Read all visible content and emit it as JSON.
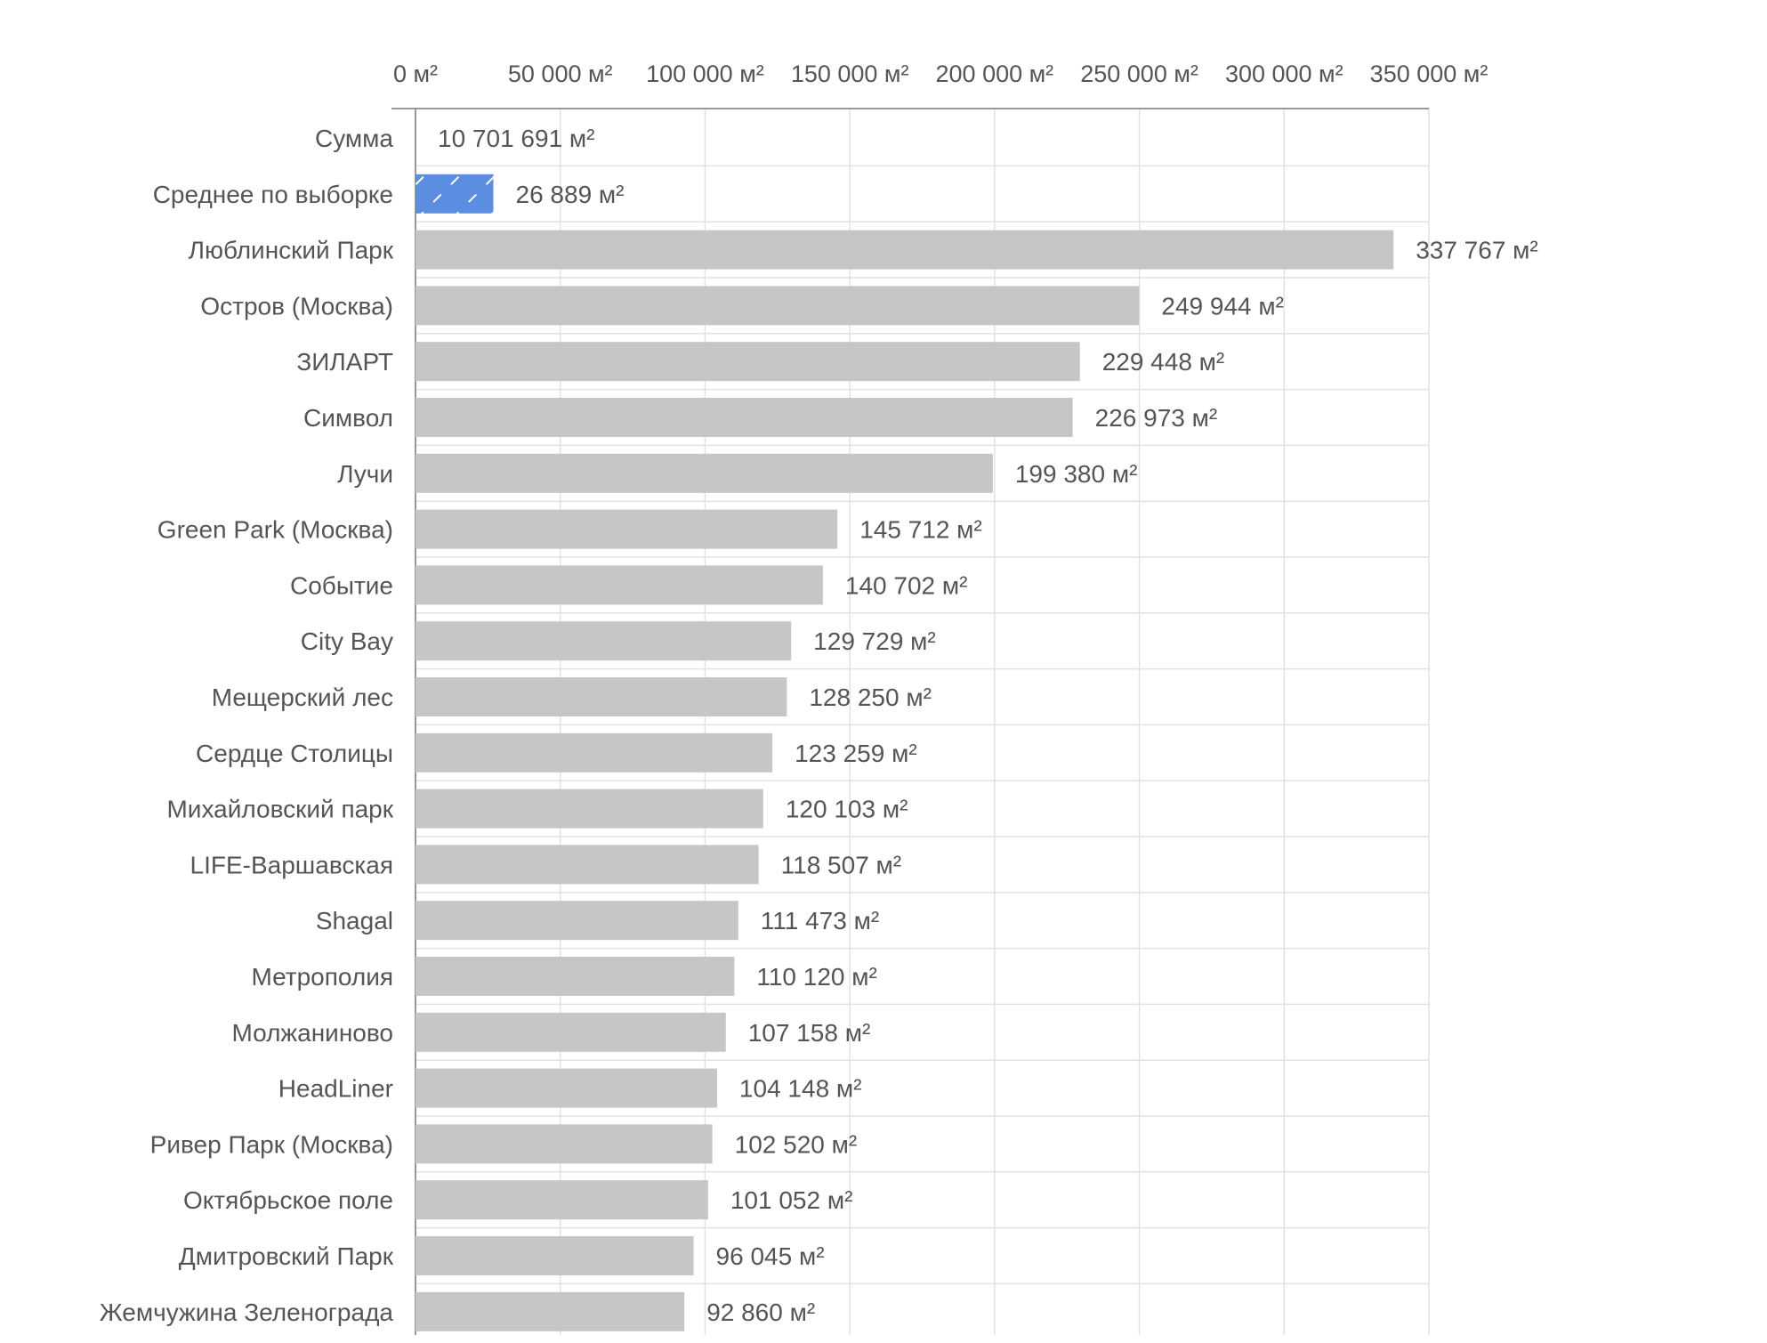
{
  "chart_data": {
    "type": "bar",
    "orientation": "horizontal",
    "unit": "м²",
    "xlim": [
      0,
      350000
    ],
    "x_ticks": [
      {
        "value": 0,
        "label": "0 м²"
      },
      {
        "value": 50000,
        "label": "50 000 м²"
      },
      {
        "value": 100000,
        "label": "100 000 м²"
      },
      {
        "value": 150000,
        "label": "150 000 м²"
      },
      {
        "value": 200000,
        "label": "200 000 м²"
      },
      {
        "value": 250000,
        "label": "250 000 м²"
      },
      {
        "value": 300000,
        "label": "300 000 м²"
      },
      {
        "value": 350000,
        "label": "350 000 м²"
      }
    ],
    "grid": true,
    "axis_position": "top",
    "title": "",
    "xlabel": "",
    "ylabel": "",
    "colors": {
      "bar": "#c6c6c6",
      "highlight_bar": "#5b8ee0",
      "highlight_stripe": "#ffffff",
      "grid": "#e2e2e2",
      "axis": "#999999",
      "text": "#555555"
    },
    "rows": [
      {
        "category": "Сумма",
        "value": 10701691,
        "label": "10 701 691 м²",
        "draw_bar": false
      },
      {
        "category": "Среднее по выборке",
        "value": 26889,
        "label": "26 889 м²",
        "highlight": true
      },
      {
        "category": "Люблинский Парк",
        "value": 337767,
        "label": "337 767 м²"
      },
      {
        "category": "Остров (Москва)",
        "value": 249944,
        "label": "249 944 м²"
      },
      {
        "category": "ЗИЛАРТ",
        "value": 229448,
        "label": "229 448 м²"
      },
      {
        "category": "Символ",
        "value": 226973,
        "label": "226 973 м²"
      },
      {
        "category": "Лучи",
        "value": 199380,
        "label": "199 380 м²"
      },
      {
        "category": "Green Park (Москва)",
        "value": 145712,
        "label": "145 712 м²"
      },
      {
        "category": "Событие",
        "value": 140702,
        "label": "140 702 м²"
      },
      {
        "category": "City Bay",
        "value": 129729,
        "label": "129 729 м²"
      },
      {
        "category": "Мещерский лес",
        "value": 128250,
        "label": "128 250 м²"
      },
      {
        "category": "Сердце Столицы",
        "value": 123259,
        "label": "123 259 м²"
      },
      {
        "category": "Михайловский парк",
        "value": 120103,
        "label": "120 103 м²"
      },
      {
        "category": "LIFE-Варшавская",
        "value": 118507,
        "label": "118 507 м²"
      },
      {
        "category": "Shagal",
        "value": 111473,
        "label": "111 473 м²"
      },
      {
        "category": "Метрополия",
        "value": 110120,
        "label": "110 120 м²"
      },
      {
        "category": "Молжаниново",
        "value": 107158,
        "label": "107 158 м²"
      },
      {
        "category": "HeadLiner",
        "value": 104148,
        "label": "104 148 м²"
      },
      {
        "category": "Ривер Парк (Москва)",
        "value": 102520,
        "label": "102 520 м²"
      },
      {
        "category": "Октябрьское поле",
        "value": 101052,
        "label": "101 052 м²"
      },
      {
        "category": "Дмитровский Парк",
        "value": 96045,
        "label": "96 045 м²"
      },
      {
        "category": "Жемчужина Зеленограда",
        "value": 92860,
        "label": "92 860 м²"
      }
    ]
  }
}
